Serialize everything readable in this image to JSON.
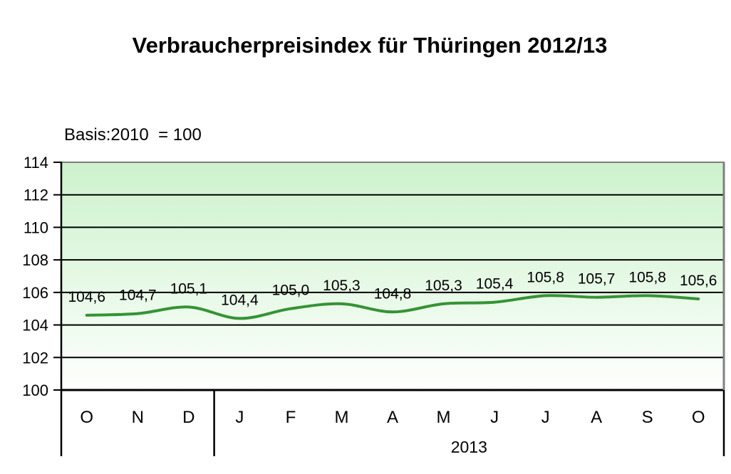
{
  "title": "Verbraucherpreisindex für Thüringen 2012/13",
  "subtitle": "Basis:2010  = 100",
  "chart_data": {
    "type": "line",
    "smoothed": true,
    "categories": [
      "O",
      "N",
      "D",
      "J",
      "F",
      "M",
      "A",
      "M",
      "J",
      "J",
      "A",
      "S",
      "O"
    ],
    "values": [
      104.6,
      104.7,
      105.1,
      104.4,
      105.0,
      105.3,
      104.8,
      105.3,
      105.4,
      105.8,
      105.7,
      105.8,
      105.6
    ],
    "point_labels": [
      "104,6",
      "104,7",
      "105,1",
      "104,4",
      "105,0",
      "105,3",
      "104,8",
      "105,3",
      "105,4",
      "105,8",
      "105,7",
      "105,8",
      "105,6"
    ],
    "title": "Verbraucherpreisindex für Thüringen 2012/13",
    "subtitle": "Basis:2010  = 100",
    "xlabel": "",
    "ylabel": "",
    "ylim": [
      100,
      114
    ],
    "yticks": [
      100,
      102,
      104,
      106,
      108,
      110,
      112,
      114
    ],
    "grid": true,
    "legend": false,
    "year_groups": [
      {
        "label": "",
        "months": 3
      },
      {
        "label": "2013",
        "months": 10
      }
    ],
    "colors": {
      "line": "#359335",
      "plot_bg_top": "#ccf2cc",
      "plot_bg_bottom": "#fdfffd",
      "grid": "#000000",
      "frame": "#808080",
      "text": "#000000"
    }
  }
}
